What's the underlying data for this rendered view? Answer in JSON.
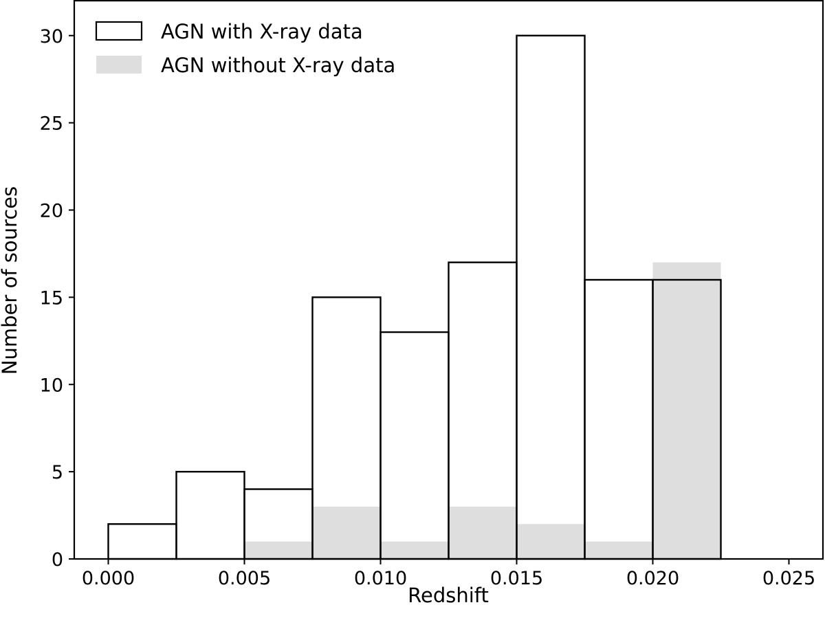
{
  "chart_data": {
    "type": "bar",
    "subtype": "histogram",
    "title": "",
    "xlabel": "Redshift",
    "ylabel": "Number of sources",
    "xlim": [
      -0.00125,
      0.02625
    ],
    "ylim": [
      0,
      32
    ],
    "xticks": [
      "0.000",
      "0.005",
      "0.010",
      "0.015",
      "0.020",
      "0.025"
    ],
    "yticks": [
      "0",
      "5",
      "10",
      "15",
      "20",
      "25",
      "30"
    ],
    "bin_edges": [
      0.0,
      0.0025,
      0.005,
      0.0075,
      0.01,
      0.0125,
      0.015,
      0.0175,
      0.02,
      0.0225
    ],
    "series": [
      {
        "name": "AGN with X-ray data",
        "style": "outline",
        "edge_color": "#000000",
        "fill_color": "none",
        "values": [
          2,
          5,
          4,
          15,
          13,
          17,
          30,
          16,
          16
        ]
      },
      {
        "name": "AGN without X-ray data",
        "style": "filled",
        "edge_color": "none",
        "fill_color": "#dedede",
        "values": [
          0,
          0,
          1,
          3,
          1,
          3,
          2,
          1,
          17
        ]
      }
    ],
    "legend_position": "top-left",
    "grid": false
  }
}
